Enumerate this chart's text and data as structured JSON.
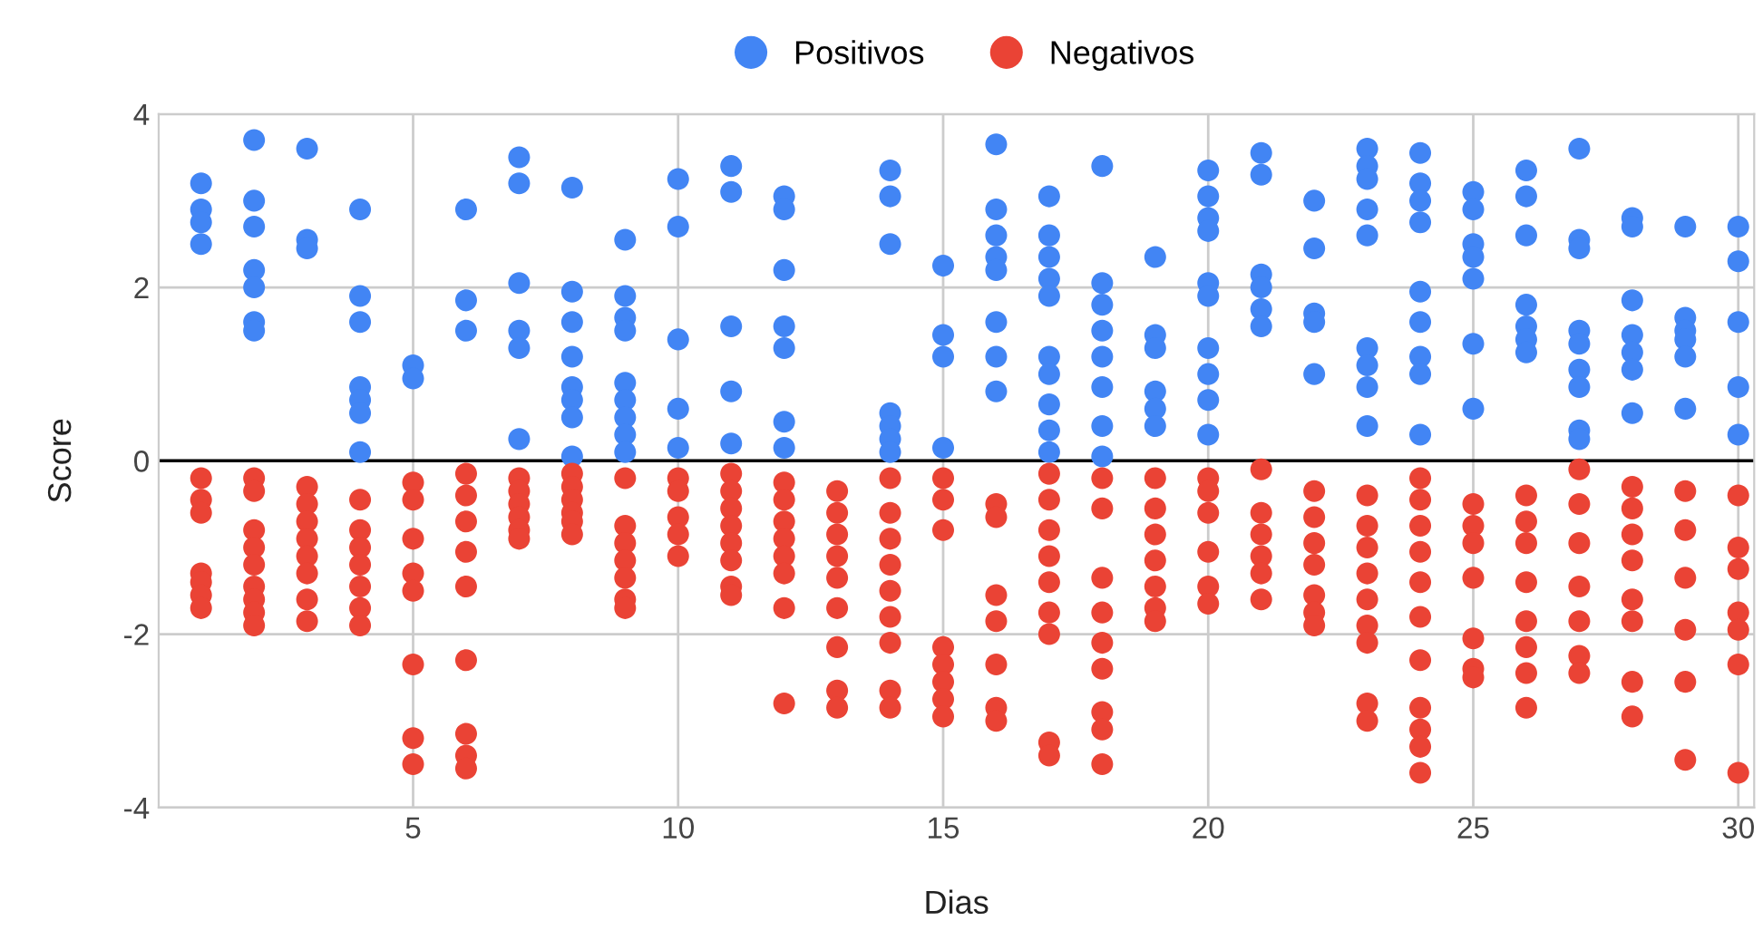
{
  "chart_data": {
    "type": "scatter",
    "xlabel": "Dias",
    "ylabel": "Score",
    "xlim": [
      0.2,
      30.3
    ],
    "xticks": [
      5,
      10,
      15,
      20,
      25,
      30
    ],
    "ylim": [
      -4,
      4
    ],
    "yticks": [
      -4,
      -2,
      0,
      2,
      4
    ],
    "grid": true,
    "legend": "top",
    "marker": "circle",
    "ref_lines": [
      {
        "axis": "y",
        "value": 0,
        "color": "#000000"
      }
    ],
    "series": [
      {
        "name": "Positivos",
        "color": "#4285f4",
        "x": [
          1,
          1,
          1,
          1,
          2,
          2,
          2,
          2,
          2,
          2,
          2,
          3,
          3,
          3,
          4,
          4,
          4,
          4,
          4,
          4,
          4,
          5,
          5,
          6,
          6,
          6,
          7,
          7,
          7,
          7,
          7,
          7,
          8,
          8,
          8,
          8,
          8,
          8,
          8,
          8,
          9,
          9,
          9,
          9,
          9,
          9,
          9,
          9,
          9,
          10,
          10,
          10,
          10,
          10,
          11,
          11,
          11,
          11,
          11,
          12,
          12,
          12,
          12,
          12,
          12,
          12,
          14,
          14,
          14,
          14,
          14,
          14,
          14,
          15,
          15,
          15,
          15,
          16,
          16,
          16,
          16,
          16,
          16,
          16,
          16,
          17,
          17,
          17,
          17,
          17,
          17,
          17,
          17,
          17,
          17,
          18,
          18,
          18,
          18,
          18,
          18,
          18,
          18,
          19,
          19,
          19,
          19,
          19,
          19,
          20,
          20,
          20,
          20,
          20,
          20,
          20,
          20,
          20,
          20,
          21,
          21,
          21,
          21,
          21,
          21,
          22,
          22,
          22,
          22,
          22,
          23,
          23,
          23,
          23,
          23,
          23,
          23,
          23,
          23,
          24,
          24,
          24,
          24,
          24,
          24,
          24,
          24,
          24,
          25,
          25,
          25,
          25,
          25,
          25,
          25,
          26,
          26,
          26,
          26,
          26,
          26,
          26,
          27,
          27,
          27,
          27,
          27,
          27,
          27,
          27,
          27,
          28,
          28,
          28,
          28,
          28,
          28,
          28,
          29,
          29,
          29,
          29,
          29,
          29,
          30,
          30,
          30,
          30,
          30
        ],
        "values": [
          3.2,
          2.9,
          2.75,
          2.5,
          3.7,
          3.0,
          2.7,
          2.2,
          2.0,
          1.6,
          1.5,
          3.6,
          2.55,
          2.45,
          2.9,
          1.9,
          1.6,
          0.85,
          0.7,
          0.55,
          0.1,
          1.1,
          0.95,
          2.9,
          1.85,
          1.5,
          3.5,
          3.2,
          2.05,
          1.5,
          1.3,
          0.25,
          3.15,
          1.95,
          1.6,
          1.2,
          0.85,
          0.7,
          0.5,
          0.05,
          2.55,
          1.9,
          1.65,
          1.5,
          0.9,
          0.7,
          0.5,
          0.3,
          0.1,
          3.25,
          2.7,
          1.4,
          0.6,
          0.15,
          3.4,
          3.1,
          1.55,
          0.8,
          0.2,
          3.05,
          2.9,
          2.2,
          1.55,
          1.3,
          0.45,
          0.15,
          3.35,
          3.05,
          2.5,
          0.55,
          0.4,
          0.25,
          0.1,
          2.25,
          1.45,
          1.2,
          0.15,
          3.65,
          2.9,
          2.6,
          2.35,
          2.2,
          1.6,
          1.2,
          0.8,
          3.05,
          2.6,
          2.35,
          2.1,
          1.9,
          1.2,
          1.0,
          0.65,
          0.35,
          0.1,
          3.4,
          2.05,
          1.8,
          1.5,
          1.2,
          0.85,
          0.4,
          0.05,
          2.35,
          1.45,
          1.3,
          0.8,
          0.6,
          0.4,
          3.35,
          3.05,
          2.8,
          2.65,
          2.05,
          1.9,
          1.3,
          1.0,
          0.7,
          0.3,
          3.55,
          3.3,
          2.15,
          2.0,
          1.75,
          1.55,
          3.0,
          2.45,
          1.7,
          1.6,
          1.0,
          3.6,
          3.4,
          3.25,
          2.9,
          2.6,
          1.3,
          1.1,
          0.85,
          0.4,
          3.55,
          3.2,
          3.0,
          2.75,
          1.95,
          1.6,
          1.2,
          1.0,
          0.3,
          3.1,
          2.9,
          2.5,
          2.35,
          2.1,
          1.35,
          0.6,
          3.35,
          3.05,
          2.6,
          1.8,
          1.55,
          1.4,
          1.25,
          3.6,
          2.55,
          2.45,
          1.5,
          1.35,
          1.05,
          0.85,
          0.35,
          0.25,
          2.8,
          2.7,
          1.85,
          1.45,
          1.25,
          1.05,
          0.55,
          2.7,
          1.65,
          1.5,
          1.4,
          1.2,
          0.6,
          2.7,
          2.3,
          1.6,
          0.85,
          0.3
        ]
      },
      {
        "name": "Negativos",
        "color": "#ea4335",
        "x": [
          1,
          1,
          1,
          1,
          1,
          1,
          1,
          2,
          2,
          2,
          2,
          2,
          2,
          2,
          2,
          2,
          3,
          3,
          3,
          3,
          3,
          3,
          3,
          3,
          4,
          4,
          4,
          4,
          4,
          4,
          4,
          5,
          5,
          5,
          5,
          5,
          5,
          5,
          5,
          6,
          6,
          6,
          6,
          6,
          6,
          6,
          6,
          6,
          7,
          7,
          7,
          7,
          7,
          7,
          8,
          8,
          8,
          8,
          8,
          8,
          9,
          9,
          9,
          9,
          9,
          9,
          9,
          10,
          10,
          10,
          10,
          10,
          11,
          11,
          11,
          11,
          11,
          11,
          11,
          11,
          12,
          12,
          12,
          12,
          12,
          12,
          12,
          12,
          13,
          13,
          13,
          13,
          13,
          13,
          13,
          13,
          13,
          14,
          14,
          14,
          14,
          14,
          14,
          14,
          14,
          14,
          15,
          15,
          15,
          15,
          15,
          15,
          15,
          15,
          16,
          16,
          16,
          16,
          16,
          16,
          16,
          17,
          17,
          17,
          17,
          17,
          17,
          17,
          17,
          17,
          18,
          18,
          18,
          18,
          18,
          18,
          18,
          18,
          18,
          19,
          19,
          19,
          19,
          19,
          19,
          19,
          20,
          20,
          20,
          20,
          20,
          20,
          21,
          21,
          21,
          21,
          21,
          21,
          22,
          22,
          22,
          22,
          22,
          22,
          22,
          23,
          23,
          23,
          23,
          23,
          23,
          23,
          23,
          23,
          24,
          24,
          24,
          24,
          24,
          24,
          24,
          24,
          24,
          24,
          24,
          25,
          25,
          25,
          25,
          25,
          25,
          25,
          26,
          26,
          26,
          26,
          26,
          26,
          26,
          26,
          27,
          27,
          27,
          27,
          27,
          27,
          27,
          28,
          28,
          28,
          28,
          28,
          28,
          28,
          28,
          29,
          29,
          29,
          29,
          29,
          29,
          30,
          30,
          30,
          30,
          30,
          30,
          30
        ],
        "values": [
          -0.2,
          -0.45,
          -0.6,
          -1.3,
          -1.4,
          -1.55,
          -1.7,
          -0.2,
          -0.35,
          -0.8,
          -1.0,
          -1.2,
          -1.45,
          -1.6,
          -1.75,
          -1.9,
          -0.3,
          -0.5,
          -0.7,
          -0.9,
          -1.1,
          -1.3,
          -1.6,
          -1.85,
          -0.45,
          -0.8,
          -1.0,
          -1.2,
          -1.45,
          -1.7,
          -1.9,
          -0.25,
          -0.45,
          -0.9,
          -1.3,
          -1.5,
          -2.35,
          -3.2,
          -3.5,
          -0.15,
          -0.4,
          -0.7,
          -1.05,
          -1.45,
          -2.3,
          -3.15,
          -3.4,
          -3.55,
          -0.2,
          -0.35,
          -0.5,
          -0.65,
          -0.8,
          -0.9,
          -0.15,
          -0.3,
          -0.45,
          -0.6,
          -0.7,
          -0.85,
          -0.2,
          -0.75,
          -0.95,
          -1.15,
          -1.35,
          -1.6,
          -1.7,
          -0.2,
          -0.35,
          -0.65,
          -0.85,
          -1.1,
          -0.15,
          -0.35,
          -0.55,
          -0.75,
          -0.95,
          -1.15,
          -1.45,
          -1.55,
          -0.25,
          -0.45,
          -0.7,
          -0.9,
          -1.1,
          -1.3,
          -1.7,
          -2.8,
          -0.35,
          -0.6,
          -0.85,
          -1.1,
          -1.35,
          -1.7,
          -2.15,
          -2.65,
          -2.85,
          -0.2,
          -0.6,
          -0.9,
          -1.2,
          -1.5,
          -1.8,
          -2.1,
          -2.65,
          -2.85,
          -0.2,
          -0.45,
          -0.8,
          -2.15,
          -2.35,
          -2.55,
          -2.75,
          -2.95,
          -0.5,
          -0.65,
          -1.55,
          -1.85,
          -2.35,
          -2.85,
          -3.0,
          -0.15,
          -0.45,
          -0.8,
          -1.1,
          -1.4,
          -1.75,
          -2.0,
          -3.25,
          -3.4,
          -0.2,
          -0.55,
          -1.35,
          -1.75,
          -2.1,
          -2.4,
          -2.9,
          -3.1,
          -3.5,
          -0.2,
          -0.55,
          -0.85,
          -1.15,
          -1.45,
          -1.7,
          -1.85,
          -0.2,
          -0.35,
          -0.6,
          -1.05,
          -1.45,
          -1.65,
          -0.1,
          -0.6,
          -0.85,
          -1.1,
          -1.3,
          -1.6,
          -0.35,
          -0.65,
          -0.95,
          -1.2,
          -1.55,
          -1.75,
          -1.9,
          -0.4,
          -0.75,
          -1.0,
          -1.3,
          -1.6,
          -1.9,
          -2.1,
          -2.8,
          -3.0,
          -0.2,
          -0.45,
          -0.75,
          -1.05,
          -1.4,
          -1.8,
          -2.3,
          -2.85,
          -3.1,
          -3.3,
          -3.6,
          -0.5,
          -0.75,
          -0.95,
          -1.35,
          -2.05,
          -2.4,
          -2.5,
          -0.4,
          -0.7,
          -0.95,
          -1.4,
          -1.85,
          -2.15,
          -2.45,
          -2.85,
          -0.1,
          -0.5,
          -0.95,
          -1.45,
          -1.85,
          -2.25,
          -2.45,
          -0.3,
          -0.55,
          -0.85,
          -1.15,
          -1.6,
          -1.85,
          -2.55,
          -2.95,
          -0.35,
          -0.8,
          -1.35,
          -1.95,
          -2.55,
          -3.45,
          -0.4,
          -1.0,
          -1.25,
          -1.75,
          -1.95,
          -2.35,
          -3.6
        ]
      }
    ]
  }
}
